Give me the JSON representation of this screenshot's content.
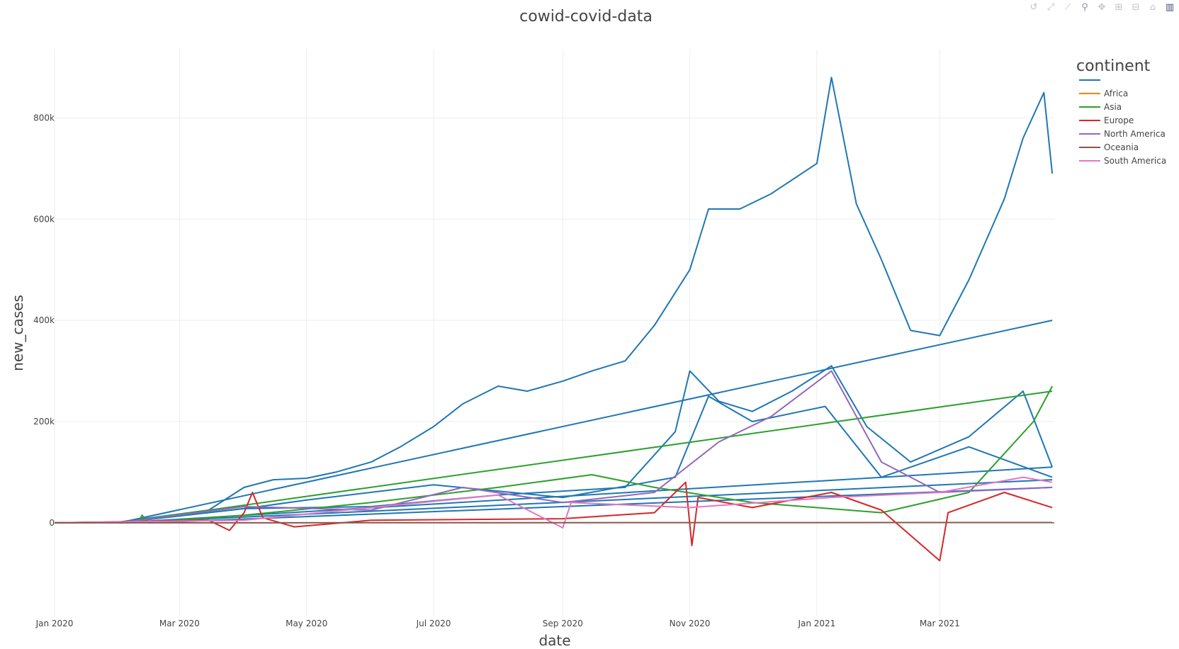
{
  "chart_data": {
    "type": "line",
    "title": "cowid-covid-data",
    "xlabel": "date",
    "ylabel": "new_cases",
    "x_range": [
      "2020-01-01",
      "2021-04-25"
    ],
    "x_ticks": [
      {
        "date": "2020-01-01",
        "label": "Jan 2020"
      },
      {
        "date": "2020-03-01",
        "label": "Mar 2020"
      },
      {
        "date": "2020-05-01",
        "label": "May 2020"
      },
      {
        "date": "2020-07-01",
        "label": "Jul 2020"
      },
      {
        "date": "2020-09-01",
        "label": "Sep 2020"
      },
      {
        "date": "2020-11-01",
        "label": "Nov 2020"
      },
      {
        "date": "2021-01-01",
        "label": "Jan 2021"
      },
      {
        "date": "2021-03-01",
        "label": "Mar 2021"
      }
    ],
    "y_range": [
      -185000,
      935000
    ],
    "y_ticks": [
      {
        "value": 0,
        "label": "0"
      },
      {
        "value": 200000,
        "label": "200k"
      },
      {
        "value": 400000,
        "label": "400k"
      },
      {
        "value": 600000,
        "label": "600k"
      },
      {
        "value": 800000,
        "label": "800k"
      }
    ],
    "grid": true,
    "legend": {
      "title": "continent",
      "position": "right",
      "entries": [
        {
          "name": "",
          "color": "#1f77b4"
        },
        {
          "name": "Africa",
          "color": "#ff7f0e"
        },
        {
          "name": "Asia",
          "color": "#2ca02c"
        },
        {
          "name": "Europe",
          "color": "#d62728"
        },
        {
          "name": "North America",
          "color": "#9467bd"
        },
        {
          "name": "Oceania",
          "color": "#8c564b"
        },
        {
          "name": "South America",
          "color": "#e377c2"
        }
      ]
    },
    "series": [
      {
        "name": "",
        "color": "#1f77b4",
        "points": [
          [
            "2020-01-01",
            0
          ],
          [
            "2020-02-01",
            1500
          ],
          [
            "2020-03-15",
            25000
          ],
          [
            "2020-04-01",
            70000
          ],
          [
            "2020-04-15",
            85000
          ],
          [
            "2020-05-01",
            88000
          ],
          [
            "2020-05-15",
            100000
          ],
          [
            "2020-06-01",
            120000
          ],
          [
            "2020-06-15",
            150000
          ],
          [
            "2020-07-01",
            190000
          ],
          [
            "2020-07-15",
            235000
          ],
          [
            "2020-08-01",
            270000
          ],
          [
            "2020-08-15",
            260000
          ],
          [
            "2020-09-01",
            280000
          ],
          [
            "2020-09-15",
            300000
          ],
          [
            "2020-10-01",
            320000
          ],
          [
            "2020-10-15",
            390000
          ],
          [
            "2020-11-01",
            500000
          ],
          [
            "2020-11-10",
            620000
          ],
          [
            "2020-11-25",
            620000
          ],
          [
            "2020-12-10",
            650000
          ],
          [
            "2021-01-01",
            710000
          ],
          [
            "2021-01-08",
            880000
          ],
          [
            "2021-01-20",
            630000
          ],
          [
            "2021-02-01",
            520000
          ],
          [
            "2021-02-15",
            380000
          ],
          [
            "2021-03-01",
            370000
          ],
          [
            "2021-03-15",
            480000
          ],
          [
            "2021-04-01",
            640000
          ],
          [
            "2021-04-10",
            760000
          ],
          [
            "2021-04-20",
            850000
          ],
          [
            "2021-04-24",
            690000
          ]
        ]
      },
      {
        "name": "",
        "color": "#1f77b4",
        "points": [
          [
            "2020-02-01",
            0
          ],
          [
            "2021-04-24",
            400000
          ]
        ]
      },
      {
        "name": "",
        "color": "#1f77b4",
        "points": [
          [
            "2020-02-01",
            0
          ],
          [
            "2020-04-01",
            28000
          ],
          [
            "2020-06-01",
            32000
          ],
          [
            "2020-08-01",
            55000
          ],
          [
            "2020-10-01",
            70000
          ],
          [
            "2020-10-25",
            180000
          ],
          [
            "2020-11-01",
            300000
          ],
          [
            "2020-11-15",
            240000
          ],
          [
            "2020-12-01",
            220000
          ],
          [
            "2020-12-20",
            260000
          ],
          [
            "2021-01-08",
            310000
          ],
          [
            "2021-01-25",
            190000
          ],
          [
            "2021-02-15",
            120000
          ],
          [
            "2021-03-15",
            170000
          ],
          [
            "2021-04-10",
            260000
          ],
          [
            "2021-04-24",
            110000
          ]
        ]
      },
      {
        "name": "",
        "color": "#1f77b4",
        "points": [
          [
            "2020-02-01",
            0
          ],
          [
            "2020-04-05",
            30000
          ],
          [
            "2020-05-01",
            45000
          ],
          [
            "2020-07-01",
            75000
          ],
          [
            "2020-09-01",
            50000
          ],
          [
            "2020-10-25",
            90000
          ],
          [
            "2020-11-10",
            250000
          ],
          [
            "2020-12-01",
            200000
          ],
          [
            "2021-01-05",
            230000
          ],
          [
            "2021-02-01",
            90000
          ],
          [
            "2021-03-15",
            150000
          ],
          [
            "2021-04-24",
            90000
          ]
        ]
      },
      {
        "name": "",
        "color": "#1f77b4",
        "points": [
          [
            "2020-02-01",
            0
          ],
          [
            "2021-04-24",
            110000
          ]
        ]
      },
      {
        "name": "",
        "color": "#1f77b4",
        "points": [
          [
            "2020-02-01",
            0
          ],
          [
            "2021-04-24",
            85000
          ]
        ]
      },
      {
        "name": "",
        "color": "#1f77b4",
        "points": [
          [
            "2020-02-15",
            0
          ],
          [
            "2021-04-24",
            70000
          ]
        ]
      },
      {
        "name": "Asia",
        "color": "#2ca02c",
        "points": [
          [
            "2020-02-01",
            0
          ],
          [
            "2021-04-24",
            260000
          ]
        ]
      },
      {
        "name": "Asia",
        "color": "#2ca02c",
        "points": [
          [
            "2020-01-01",
            0
          ],
          [
            "2020-02-10",
            1000
          ],
          [
            "2020-02-12",
            15000
          ],
          [
            "2020-02-15",
            1000
          ],
          [
            "2020-04-01",
            15000
          ],
          [
            "2020-06-01",
            40000
          ],
          [
            "2020-08-01",
            70000
          ],
          [
            "2020-09-15",
            95000
          ],
          [
            "2020-10-15",
            70000
          ],
          [
            "2020-12-01",
            40000
          ],
          [
            "2021-02-01",
            20000
          ],
          [
            "2021-03-15",
            60000
          ],
          [
            "2021-04-15",
            200000
          ],
          [
            "2021-04-24",
            270000
          ]
        ]
      },
      {
        "name": "Europe",
        "color": "#d62728",
        "points": [
          [
            "2020-01-01",
            0
          ],
          [
            "2020-03-15",
            5000
          ],
          [
            "2020-03-25",
            -15000
          ],
          [
            "2020-04-01",
            20000
          ],
          [
            "2020-04-05",
            60000
          ],
          [
            "2020-04-10",
            10000
          ],
          [
            "2020-04-25",
            -8000
          ],
          [
            "2020-06-01",
            5000
          ],
          [
            "2020-09-01",
            8000
          ],
          [
            "2020-10-15",
            20000
          ],
          [
            "2020-10-30",
            80000
          ],
          [
            "2020-11-02",
            -45000
          ],
          [
            "2020-11-05",
            50000
          ],
          [
            "2020-12-01",
            30000
          ],
          [
            "2021-01-08",
            60000
          ],
          [
            "2021-02-01",
            25000
          ],
          [
            "2021-03-01",
            -75000
          ],
          [
            "2021-03-05",
            20000
          ],
          [
            "2021-04-01",
            60000
          ],
          [
            "2021-04-24",
            30000
          ]
        ]
      },
      {
        "name": "North America",
        "color": "#9467bd",
        "points": [
          [
            "2020-02-01",
            0
          ],
          [
            "2020-04-01",
            32000
          ],
          [
            "2020-06-01",
            25000
          ],
          [
            "2020-07-15",
            70000
          ],
          [
            "2020-09-01",
            40000
          ],
          [
            "2020-10-15",
            60000
          ],
          [
            "2020-11-15",
            160000
          ],
          [
            "2020-12-10",
            210000
          ],
          [
            "2021-01-08",
            300000
          ],
          [
            "2021-02-01",
            120000
          ],
          [
            "2021-03-01",
            60000
          ],
          [
            "2021-04-24",
            70000
          ]
        ]
      },
      {
        "name": "South America",
        "color": "#e377c2",
        "points": [
          [
            "2020-01-01",
            0
          ],
          [
            "2020-04-01",
            5000
          ],
          [
            "2020-06-01",
            30000
          ],
          [
            "2020-08-01",
            55000
          ],
          [
            "2020-09-01",
            -10000
          ],
          [
            "2020-09-05",
            40000
          ],
          [
            "2020-11-01",
            30000
          ],
          [
            "2021-01-08",
            50000
          ],
          [
            "2021-03-01",
            60000
          ],
          [
            "2021-04-10",
            90000
          ],
          [
            "2021-04-24",
            80000
          ]
        ]
      },
      {
        "name": "Oceania",
        "color": "#8c564b",
        "points": [
          [
            "2020-01-01",
            0
          ],
          [
            "2021-04-24",
            500
          ]
        ]
      }
    ]
  },
  "modebar": {
    "buttons": [
      {
        "name": "reset-axes-icon",
        "glyph": "↺"
      },
      {
        "name": "autoscale-icon",
        "glyph": "⤢"
      },
      {
        "name": "compare-hover-icon",
        "glyph": "⟋"
      },
      {
        "name": "zoom-icon",
        "glyph": "⚲"
      },
      {
        "name": "pan-icon",
        "glyph": "✥"
      },
      {
        "name": "zoom-in-icon",
        "glyph": "⊞"
      },
      {
        "name": "zoom-out-icon",
        "glyph": "⊟"
      },
      {
        "name": "home-icon",
        "glyph": "⌂"
      },
      {
        "name": "plotly-logo-icon",
        "glyph": "▥"
      }
    ]
  }
}
